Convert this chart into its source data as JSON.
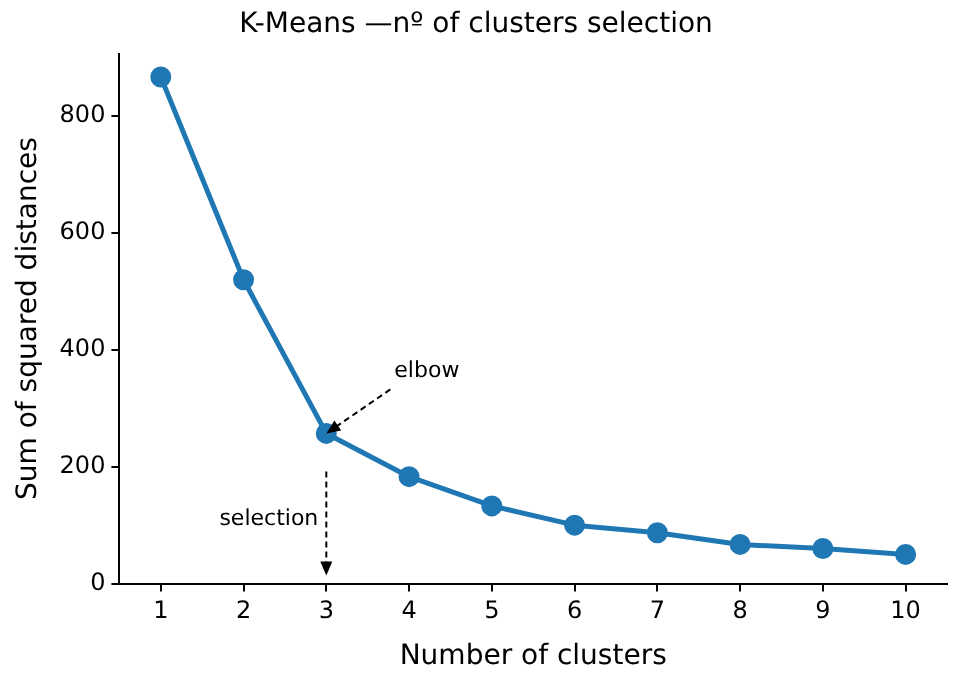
{
  "chart_data": {
    "type": "line",
    "title": "K-Means —nº of clusters selection",
    "xlabel": "Number of clusters",
    "ylabel": "Sum of squared distances",
    "x": [
      1,
      2,
      3,
      4,
      5,
      6,
      7,
      8,
      9,
      10
    ],
    "series": [
      {
        "color": "#1f77b4",
        "values": [
          867,
          520,
          257,
          183,
          133,
          100,
          87,
          67,
          60,
          50
        ]
      }
    ],
    "xlim": [
      0.5,
      10.5
    ],
    "xticks": [
      1,
      2,
      3,
      4,
      5,
      6,
      7,
      8,
      9,
      10
    ],
    "ylim": [
      0,
      907
    ],
    "yticks": [
      0,
      200,
      400,
      600,
      800
    ],
    "grid": false,
    "legend": false,
    "marker": "circle",
    "line_style": "solid",
    "annotations": [
      {
        "text": "elbow",
        "x": 3,
        "y": 257
      },
      "selection"
    ]
  }
}
